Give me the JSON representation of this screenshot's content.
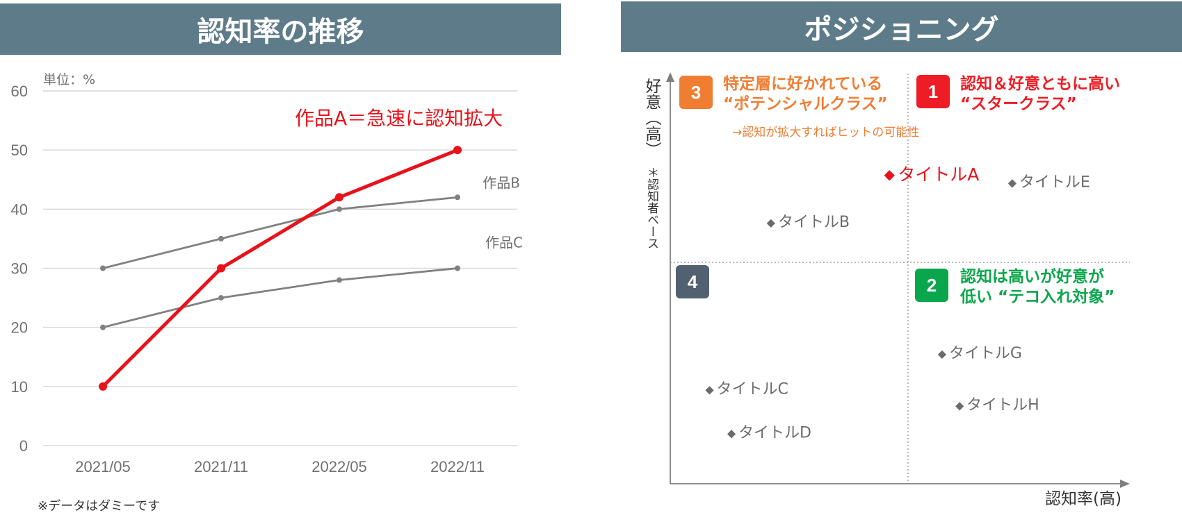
{
  "chart_data": [
    {
      "type": "line",
      "title": "認知率の推移",
      "unit_label": "単位：%",
      "categories": [
        "2021/05",
        "2021/11",
        "2022/05",
        "2022/11"
      ],
      "ylim": [
        0,
        60
      ],
      "yticks": [
        "0",
        "10",
        "20",
        "30",
        "40",
        "50",
        "60"
      ],
      "grid": true,
      "series": [
        {
          "name": "作品A",
          "values": [
            10,
            30,
            42,
            50
          ],
          "color": "#e8121a"
        },
        {
          "name": "作品B",
          "values": [
            30,
            35,
            40,
            42
          ],
          "color": "#808080"
        },
        {
          "name": "作品C",
          "values": [
            20,
            25,
            28,
            30
          ],
          "color": "#808080"
        }
      ],
      "annotation": "作品A＝急速に認知拡大",
      "footnote": "※データはダミーです"
    },
    {
      "type": "scatter",
      "title": "ポジショニング",
      "xlabel": "認知率(高)",
      "ylabel_main": "好意（高）",
      "ylabel_note": "＊認知者ベース",
      "xlim": [
        0,
        100
      ],
      "ylim": [
        0,
        100
      ],
      "points": [
        {
          "label": "タイトルA",
          "x": 49,
          "y": 78,
          "color": "#e8121a",
          "highlight": true
        },
        {
          "label": "タイトルE",
          "x": 77,
          "y": 76,
          "color": "#6b6b6b"
        },
        {
          "label": "タイトルB",
          "x": 22,
          "y": 66,
          "color": "#6b6b6b"
        },
        {
          "label": "タイトルG",
          "x": 61,
          "y": 33,
          "color": "#6b6b6b"
        },
        {
          "label": "タイトルC",
          "x": 8,
          "y": 24,
          "color": "#6b6b6b"
        },
        {
          "label": "タイトルH",
          "x": 65,
          "y": 20,
          "color": "#6b6b6b"
        },
        {
          "label": "タイトルD",
          "x": 13,
          "y": 13,
          "color": "#6b6b6b"
        }
      ],
      "quadrants": [
        {
          "number": "3",
          "color": "#ef7d32",
          "line1": "特定層に好かれている",
          "line2": "“ポテンシャルクラス”",
          "note": "→認知が拡大すればヒットの可能性"
        },
        {
          "number": "1",
          "color": "#ee1c24",
          "line1": "認知＆好意ともに高い",
          "line2": "“スタークラス”"
        },
        {
          "number": "4",
          "color": "#526170"
        },
        {
          "number": "2",
          "color": "#0aa64b",
          "line1": "認知は高いが好意が",
          "line2": "低い “テコ入れ対象”"
        }
      ]
    }
  ]
}
